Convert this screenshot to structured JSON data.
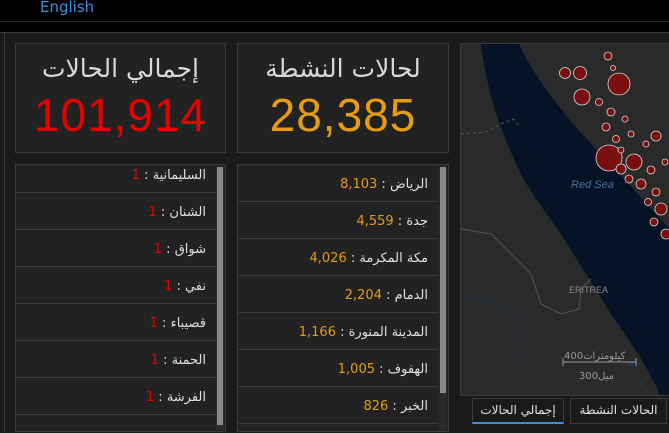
{
  "language_link": "English",
  "total_cases": {
    "title": "إجمالي الحالات",
    "value": "101,914"
  },
  "active_cases": {
    "title": "لحالات النشطة",
    "value": "28,385"
  },
  "left_list": [
    {
      "name": "السليمانية",
      "value": "1"
    },
    {
      "name": "الشنان",
      "value": "1"
    },
    {
      "name": "شواق",
      "value": "1"
    },
    {
      "name": "نفي",
      "value": "1"
    },
    {
      "name": "قصيباء",
      "value": "1"
    },
    {
      "name": "الحمنة",
      "value": "1"
    },
    {
      "name": "الفرشة",
      "value": "1"
    }
  ],
  "right_list": [
    {
      "name": "الرياض",
      "value": "8,103"
    },
    {
      "name": "جدة",
      "value": "4,559"
    },
    {
      "name": "مكة المكرمة",
      "value": "4,026"
    },
    {
      "name": "الدمام",
      "value": "2,204"
    },
    {
      "name": "المدينة المنورة",
      "value": "1,166"
    },
    {
      "name": "الهفوف",
      "value": "1,005"
    },
    {
      "name": "الخبر",
      "value": "826"
    }
  ],
  "map": {
    "sea_label": "Red Sea",
    "country_label": "ERITREA",
    "scale_km": "400كيلومترات",
    "scale_mi": "300ميل"
  },
  "tabs": {
    "total": "إجمالي الحالات",
    "active": "الحالات النشطة"
  },
  "colors": {
    "total": "#e60000",
    "active": "#e69b14",
    "accent": "#3d8fe0",
    "bubble": "#7a0f0f"
  }
}
